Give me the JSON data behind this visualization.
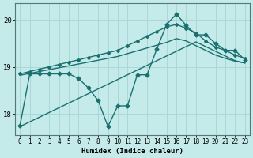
{
  "xlabel": "Humidex (Indice chaleur)",
  "ylabel": "",
  "bg_color": "#c5eaea",
  "grid_color": "#a8d4d4",
  "line_color": "#1a7070",
  "xlim": [
    -0.5,
    23.5
  ],
  "ylim": [
    17.55,
    20.35
  ],
  "yticks": [
    18,
    19,
    20
  ],
  "xticks": [
    0,
    1,
    2,
    3,
    4,
    5,
    6,
    7,
    8,
    9,
    10,
    11,
    12,
    13,
    14,
    15,
    16,
    17,
    18,
    19,
    20,
    21,
    22,
    23
  ],
  "xtick_labels": [
    "0",
    "1",
    "2",
    "3",
    "4",
    "5",
    "6",
    "7",
    "8",
    "9",
    "10",
    "11",
    "12",
    "13",
    "14",
    "15",
    "16",
    "17",
    "18",
    "19",
    "20",
    "21",
    "22",
    "23"
  ],
  "series": {
    "line_jagged": {
      "x": [
        0,
        1,
        2,
        3,
        4,
        5,
        6,
        7,
        8,
        9,
        10,
        11,
        12,
        13,
        14,
        15,
        16,
        17,
        18,
        19,
        20,
        21,
        22,
        23
      ],
      "y": [
        17.75,
        18.85,
        18.85,
        18.85,
        18.85,
        18.85,
        18.75,
        18.55,
        18.28,
        17.73,
        18.17,
        18.17,
        18.83,
        18.83,
        19.38,
        19.9,
        20.12,
        19.88,
        19.68,
        19.68,
        19.5,
        19.35,
        19.35,
        19.15
      ],
      "marker": "D",
      "markersize": 2.5,
      "linewidth": 1.0
    },
    "line_upper": {
      "x": [
        0,
        1,
        2,
        3,
        4,
        5,
        6,
        7,
        8,
        9,
        10,
        11,
        12,
        13,
        14,
        15,
        16,
        17,
        18,
        19,
        20,
        21,
        22,
        23
      ],
      "y": [
        18.85,
        18.9,
        18.95,
        19.0,
        19.05,
        19.1,
        19.15,
        19.2,
        19.25,
        19.3,
        19.35,
        19.45,
        19.55,
        19.65,
        19.75,
        19.85,
        19.9,
        19.82,
        19.72,
        19.55,
        19.42,
        19.35,
        19.25,
        19.18
      ],
      "marker": "D",
      "markersize": 2.0,
      "linewidth": 1.0
    },
    "line_mid": {
      "x": [
        0,
        1,
        2,
        3,
        4,
        5,
        6,
        7,
        8,
        9,
        10,
        11,
        12,
        13,
        14,
        15,
        16,
        17,
        18,
        19,
        20,
        21,
        22,
        23
      ],
      "y": [
        18.82,
        18.86,
        18.9,
        18.94,
        18.98,
        19.02,
        19.06,
        19.1,
        19.14,
        19.18,
        19.22,
        19.28,
        19.34,
        19.4,
        19.46,
        19.52,
        19.6,
        19.55,
        19.45,
        19.35,
        19.25,
        19.18,
        19.12,
        19.08
      ],
      "marker": null,
      "markersize": 0,
      "linewidth": 1.0
    },
    "line_lower": {
      "x": [
        0,
        1,
        2,
        3,
        4,
        5,
        6,
        7,
        8,
        9,
        10,
        11,
        12,
        13,
        14,
        15,
        16,
        17,
        18,
        19,
        20,
        21,
        22,
        23
      ],
      "y": [
        17.73,
        17.83,
        17.93,
        18.03,
        18.13,
        18.23,
        18.33,
        18.43,
        18.53,
        18.63,
        18.73,
        18.83,
        18.93,
        19.03,
        19.13,
        19.23,
        19.33,
        19.43,
        19.53,
        19.43,
        19.33,
        19.23,
        19.13,
        19.08
      ],
      "marker": null,
      "markersize": 0,
      "linewidth": 1.0
    }
  }
}
